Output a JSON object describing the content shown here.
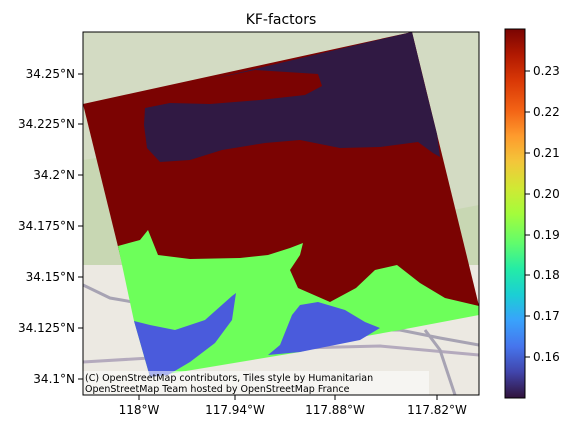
{
  "chart_data": {
    "type": "heatmap",
    "title": "KF-factors",
    "xlabel": "",
    "ylabel": "",
    "x_ticks": [
      "118°W",
      "117.94°W",
      "117.88°W",
      "117.82°W"
    ],
    "y_ticks": [
      "34.25°N",
      "34.225°N",
      "34.2°N",
      "34.175°N",
      "34.15°N",
      "34.125°N",
      "34.1°N"
    ],
    "colorbar": {
      "range": [
        0.151,
        0.24
      ],
      "ticks": [
        "0.23",
        "0.22",
        "0.21",
        "0.20",
        "0.19",
        "0.18",
        "0.17",
        "0.16"
      ],
      "colormap": "turbo"
    },
    "categories": [
      {
        "value": 0.152,
        "color": "#301943"
      },
      {
        "value": 0.163,
        "color": "#4a5bdc"
      },
      {
        "value": 0.19,
        "color": "#6dff5a"
      },
      {
        "value": 0.24,
        "color": "#7b0302"
      }
    ],
    "attribution": [
      "(C) OpenStreetMap contributors, Tiles style by Humanitarian",
      "OpenStreetMap Team hosted by OpenStreetMap France"
    ]
  }
}
